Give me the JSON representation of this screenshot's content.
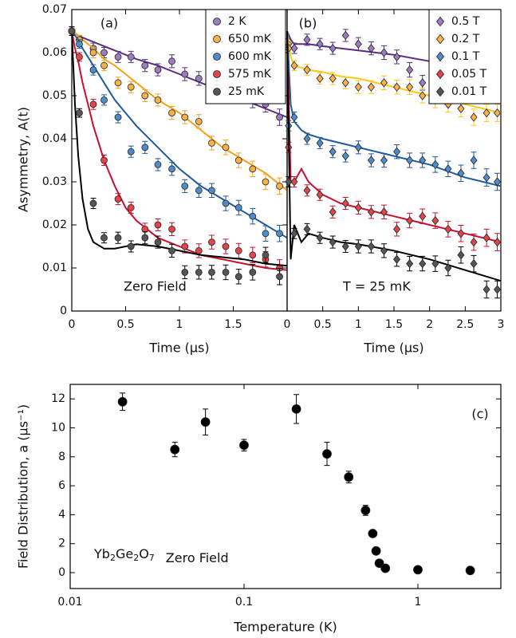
{
  "chart_data": [
    {
      "type": "scatter",
      "label": "(a)",
      "annotation": "Zero Field",
      "xlabel": "Time (μs)",
      "ylabel": "Asymmetry, A(t)",
      "xlim": [
        0,
        2
      ],
      "ylim": [
        0,
        0.07
      ],
      "xticks": [
        0,
        0.5,
        1,
        1.5
      ],
      "yticks": [
        0,
        0.01,
        0.02,
        0.03,
        0.04,
        0.05,
        0.06,
        0.07
      ],
      "marker": "circle",
      "legend": "upper right",
      "x": [
        0,
        0.07,
        0.2,
        0.3,
        0.43,
        0.55,
        0.68,
        0.8,
        0.93,
        1.05,
        1.18,
        1.3,
        1.43,
        1.55,
        1.68,
        1.8,
        1.93
      ],
      "fit_x": [
        0,
        0.03,
        0.06,
        0.1,
        0.15,
        0.2,
        0.3,
        0.4,
        0.5,
        0.6,
        0.8,
        1,
        1.2,
        1.4,
        1.6,
        1.8,
        2
      ],
      "series": [
        {
          "name": "2 K",
          "color": "#9b7cc0",
          "line_color": "#5a2d82",
          "values": [
            0.065,
            0.063,
            0.061,
            0.06,
            0.059,
            0.059,
            0.057,
            0.056,
            0.058,
            0.055,
            0.054,
            0.053,
            0.052,
            0.05,
            0.049,
            0.048,
            0.045
          ],
          "errors": [
            0.001,
            0.001,
            0.0012,
            0.0012,
            0.0013,
            0.0013,
            0.0014,
            0.0014,
            0.0015,
            0.0015,
            0.0016,
            0.0016,
            0.0017,
            0.0017,
            0.0018,
            0.0018,
            0.0019
          ],
          "fit": [
            0.065,
            0.0645,
            0.064,
            0.0635,
            0.063,
            0.0625,
            0.0615,
            0.0605,
            0.0595,
            0.0585,
            0.057,
            0.055,
            0.053,
            0.051,
            0.049,
            0.047,
            0.045
          ]
        },
        {
          "name": "650 mK",
          "color": "#f7b04a",
          "line_color": "#f5a21a",
          "values": [
            0.065,
            0.063,
            0.06,
            0.057,
            0.053,
            0.052,
            0.05,
            0.049,
            0.046,
            0.045,
            0.044,
            0.039,
            0.038,
            0.035,
            0.033,
            0.03,
            0.029
          ],
          "errors": [
            0.001,
            0.001,
            0.0012,
            0.0012,
            0.0013,
            0.0013,
            0.0014,
            0.0014,
            0.0015,
            0.0015,
            0.0016,
            0.0016,
            0.0017,
            0.0017,
            0.0018,
            0.0018,
            0.0019
          ],
          "fit": [
            0.065,
            0.0645,
            0.064,
            0.063,
            0.062,
            0.061,
            0.0585,
            0.057,
            0.055,
            0.053,
            0.049,
            0.046,
            0.042,
            0.038,
            0.035,
            0.032,
            0.028
          ]
        },
        {
          "name": "600 mK",
          "color": "#4f8cc9",
          "line_color": "#1f5a9e",
          "values": [
            0.065,
            0.062,
            0.056,
            0.049,
            0.045,
            0.037,
            0.038,
            0.034,
            0.033,
            0.029,
            0.028,
            0.028,
            0.025,
            0.024,
            0.022,
            0.018,
            0.018
          ],
          "errors": [
            0.001,
            0.001,
            0.0012,
            0.0012,
            0.0013,
            0.0013,
            0.0014,
            0.0014,
            0.0015,
            0.0015,
            0.0016,
            0.0016,
            0.0017,
            0.0017,
            0.0018,
            0.0018,
            0.0019
          ],
          "fit": [
            0.065,
            0.064,
            0.063,
            0.061,
            0.059,
            0.057,
            0.053,
            0.049,
            0.046,
            0.043,
            0.038,
            0.033,
            0.029,
            0.026,
            0.023,
            0.02,
            0.017
          ]
        },
        {
          "name": "575 mK",
          "color": "#e0454a",
          "line_color": "#c8102e",
          "values": [
            0.065,
            0.059,
            0.048,
            0.035,
            0.026,
            0.024,
            0.019,
            0.02,
            0.019,
            0.015,
            0.014,
            0.016,
            0.015,
            0.014,
            0.013,
            0.012,
            0.01
          ],
          "errors": [
            0.001,
            0.001,
            0.0012,
            0.0012,
            0.0013,
            0.0013,
            0.0014,
            0.0014,
            0.0015,
            0.0015,
            0.0016,
            0.0016,
            0.0017,
            0.0017,
            0.0018,
            0.0018,
            0.0019
          ],
          "fit": [
            0.065,
            0.061,
            0.058,
            0.053,
            0.048,
            0.043,
            0.035,
            0.029,
            0.024,
            0.021,
            0.017,
            0.015,
            0.013,
            0.012,
            0.011,
            0.01,
            0.0095
          ]
        },
        {
          "name": "25 mK",
          "color": "#555555",
          "line_color": "#000000",
          "values": [
            0.065,
            0.046,
            0.025,
            0.017,
            0.017,
            0.015,
            0.017,
            0.016,
            0.014,
            0.009,
            0.009,
            0.009,
            0.009,
            0.008,
            0.009,
            0.013,
            0.008
          ],
          "errors": [
            0.001,
            0.001,
            0.0012,
            0.0012,
            0.0013,
            0.0013,
            0.0014,
            0.0014,
            0.0015,
            0.0015,
            0.0016,
            0.0016,
            0.0017,
            0.0017,
            0.0018,
            0.0018,
            0.0019
          ],
          "fit": [
            0.065,
            0.048,
            0.036,
            0.026,
            0.019,
            0.016,
            0.0145,
            0.0145,
            0.015,
            0.0155,
            0.015,
            0.014,
            0.013,
            0.0125,
            0.012,
            0.011,
            0.0105
          ]
        }
      ]
    },
    {
      "type": "scatter",
      "label": "(b)",
      "annotation": "T = 25 mK",
      "xlabel": "Time (μs)",
      "xlim": [
        0,
        3
      ],
      "ylim": [
        0,
        0.07
      ],
      "xticks": [
        0,
        0.5,
        1,
        1.5,
        2,
        2.5,
        3
      ],
      "marker": "diamond",
      "legend": "upper right",
      "x": [
        0.02,
        0.1,
        0.28,
        0.46,
        0.64,
        0.82,
        1.0,
        1.18,
        1.36,
        1.54,
        1.72,
        1.9,
        2.08,
        2.26,
        2.44,
        2.62,
        2.8,
        2.95
      ],
      "fit_x": [
        0,
        0.05,
        0.1,
        0.2,
        0.3,
        0.5,
        0.75,
        1,
        1.5,
        2,
        2.5,
        3
      ],
      "series": [
        {
          "name": "0.5 T",
          "color": "#9b7cc0",
          "line_color": "#5a2d82",
          "values": [
            0.062,
            0.061,
            0.063,
            0.062,
            0.061,
            0.064,
            0.062,
            0.061,
            0.06,
            0.059,
            0.056,
            0.053,
            0.055,
            0.057,
            0.058,
            0.06,
            0.058,
            0.057
          ],
          "errors": [
            0.0012,
            0.0012,
            0.0013,
            0.0013,
            0.0014,
            0.0014,
            0.0015,
            0.0015,
            0.0016,
            0.0016,
            0.0017,
            0.0017,
            0.0018,
            0.0018,
            0.0019,
            0.0019,
            0.002,
            0.002
          ],
          "fit": [
            0.065,
            0.063,
            0.062,
            0.062,
            0.062,
            0.0615,
            0.061,
            0.0605,
            0.0595,
            0.058,
            0.057,
            0.056
          ]
        },
        {
          "name": "0.2 T",
          "color": "#f7b04a",
          "line_color": "#ffc61a",
          "values": [
            0.061,
            0.057,
            0.056,
            0.054,
            0.054,
            0.053,
            0.052,
            0.052,
            0.053,
            0.052,
            0.052,
            0.05,
            0.049,
            0.048,
            0.047,
            0.045,
            0.046,
            0.046
          ],
          "errors": [
            0.0012,
            0.0012,
            0.0013,
            0.0013,
            0.0014,
            0.0014,
            0.0015,
            0.0015,
            0.0016,
            0.0016,
            0.0017,
            0.0017,
            0.0018,
            0.0018,
            0.0019,
            0.0019,
            0.002,
            0.002
          ],
          "fit": [
            0.065,
            0.059,
            0.057,
            0.0565,
            0.056,
            0.0555,
            0.0545,
            0.054,
            0.052,
            0.05,
            0.048,
            0.046
          ]
        },
        {
          "name": "0.1 T",
          "color": "#4f8cc9",
          "line_color": "#1f5a9e",
          "values": [
            0.043,
            0.045,
            0.04,
            0.039,
            0.037,
            0.036,
            0.038,
            0.035,
            0.035,
            0.037,
            0.035,
            0.035,
            0.034,
            0.033,
            0.032,
            0.035,
            0.031,
            0.03
          ],
          "errors": [
            0.0012,
            0.0012,
            0.0013,
            0.0013,
            0.0014,
            0.0014,
            0.0015,
            0.0015,
            0.0016,
            0.0016,
            0.0017,
            0.0017,
            0.0018,
            0.0018,
            0.0019,
            0.0019,
            0.002,
            0.002
          ],
          "fit": [
            0.065,
            0.048,
            0.044,
            0.042,
            0.041,
            0.04,
            0.039,
            0.038,
            0.036,
            0.034,
            0.031,
            0.029
          ]
        },
        {
          "name": "0.05 T",
          "color": "#e0454a",
          "line_color": "#c8102e",
          "values": [
            0.038,
            0.03,
            0.028,
            0.027,
            0.023,
            0.025,
            0.024,
            0.023,
            0.023,
            0.019,
            0.021,
            0.022,
            0.021,
            0.019,
            0.018,
            0.016,
            0.017,
            0.016
          ],
          "errors": [
            0.0012,
            0.0012,
            0.0013,
            0.0013,
            0.0014,
            0.0014,
            0.0015,
            0.0015,
            0.0016,
            0.0016,
            0.0017,
            0.0017,
            0.0018,
            0.0018,
            0.0019,
            0.0019,
            0.002,
            0.002
          ],
          "fit": [
            0.065,
            0.03,
            0.03,
            0.033,
            0.03,
            0.027,
            0.025,
            0.024,
            0.022,
            0.02,
            0.018,
            0.016
          ]
        },
        {
          "name": "0.01 T",
          "color": "#555555",
          "line_color": "#000000",
          "values": [
            0.03,
            0.018,
            0.019,
            0.017,
            0.016,
            0.015,
            0.015,
            0.015,
            0.014,
            0.012,
            0.011,
            0.011,
            0.011,
            0.01,
            0.013,
            0.011,
            0.005,
            0.005
          ],
          "errors": [
            0.0012,
            0.0012,
            0.0013,
            0.0013,
            0.0014,
            0.0014,
            0.0015,
            0.0015,
            0.0016,
            0.0016,
            0.0017,
            0.0017,
            0.0018,
            0.0018,
            0.0019,
            0.0019,
            0.002,
            0.002
          ],
          "fit": [
            0.065,
            0.012,
            0.02,
            0.016,
            0.018,
            0.017,
            0.016,
            0.0155,
            0.014,
            0.012,
            0.0095,
            0.007
          ]
        }
      ]
    },
    {
      "type": "scatter",
      "label": "(c)",
      "compound": [
        "Yb",
        "2",
        "Ge",
        "2",
        "O",
        "7"
      ],
      "annotation": "Zero Field",
      "xlabel": "Temperature (K)",
      "ylabel": "Field Distribution, a (μs⁻¹)",
      "xscale": "log",
      "xlim": [
        0.01,
        3
      ],
      "ylim": [
        -1.1,
        13
      ],
      "xticks": [
        0.01,
        0.1,
        1
      ],
      "yticks": [
        0,
        2,
        4,
        6,
        8,
        10,
        12
      ],
      "marker": "circle",
      "x": [
        0.02,
        0.04,
        0.06,
        0.1,
        0.2,
        0.3,
        0.4,
        0.5,
        0.55,
        0.575,
        0.6,
        0.65,
        1,
        2
      ],
      "series": [
        {
          "color": "#000000",
          "values": [
            11.8,
            8.5,
            10.4,
            8.8,
            11.3,
            8.2,
            6.6,
            4.3,
            2.7,
            1.5,
            0.65,
            0.3,
            0.2,
            0.15
          ],
          "errors": [
            0.6,
            0.5,
            0.9,
            0.4,
            1.0,
            0.8,
            0.4,
            0.35,
            0.2,
            0.2,
            0.15,
            0.1,
            0.1,
            0.1
          ]
        }
      ]
    }
  ]
}
